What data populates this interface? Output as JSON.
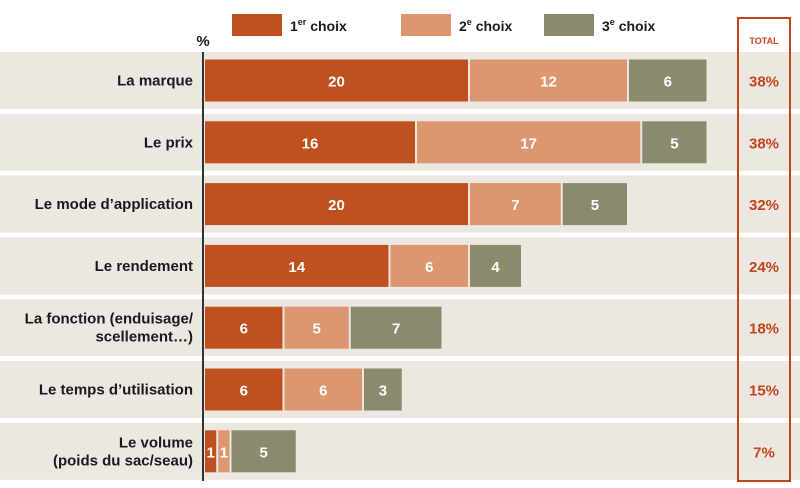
{
  "chart_data": {
    "type": "bar",
    "orientation": "horizontal",
    "stacked": true,
    "unit": "%",
    "total_header": "TOTAL",
    "categories": [
      [
        "La marque"
      ],
      [
        "Le prix"
      ],
      [
        "Le mode d’application"
      ],
      [
        "Le rendement"
      ],
      [
        "La fonction (enduisage/",
        "scellement…)"
      ],
      [
        "Le temps d’utilisation"
      ],
      [
        "Le volume",
        "(poids du sac/seau)"
      ]
    ],
    "series": [
      {
        "name": "1er choix",
        "name_main": "1",
        "name_sup": "er",
        "name_rest": " choix",
        "color": "#c0501f",
        "values": [
          20,
          16,
          20,
          14,
          6,
          6,
          1
        ]
      },
      {
        "name": "2e choix",
        "name_main": "2",
        "name_sup": "e",
        "name_rest": " choix",
        "color": "#dc9670",
        "values": [
          12,
          17,
          7,
          6,
          5,
          6,
          1
        ]
      },
      {
        "name": "3e choix",
        "name_main": "3",
        "name_sup": "e",
        "name_rest": " choix",
        "color": "#8c8a6c",
        "values": [
          6,
          5,
          5,
          4,
          7,
          3,
          5
        ]
      }
    ],
    "totals": [
      "38%",
      "38%",
      "32%",
      "24%",
      "18%",
      "15%",
      "7%"
    ],
    "xlim": [
      0,
      40
    ],
    "colors": {
      "band": "#ece7e0",
      "total_accent": "#c0451c",
      "axis": "#333333"
    }
  }
}
